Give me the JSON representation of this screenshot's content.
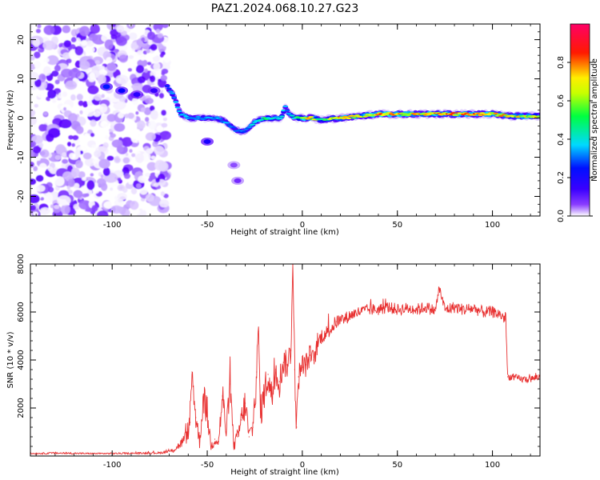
{
  "title": "PAZ1.2024.068.10.27.G23",
  "chart_data": [
    {
      "type": "heatmap",
      "xlabel": "Height of straight line (km)",
      "ylabel": "Frequency (Hz)",
      "xlim": [
        -143,
        125
      ],
      "ylim": [
        -25,
        24
      ],
      "xticks": [
        -100,
        -50,
        0,
        50,
        100
      ],
      "yticks": [
        -20,
        -10,
        0,
        10,
        20
      ],
      "x_minor_step": 10,
      "y_minor_step": 2,
      "colorbar": {
        "label": "Normalized spectral amplitude",
        "range": [
          0.0,
          1.0
        ],
        "ticks": [
          0.0,
          0.2,
          0.4,
          0.6,
          0.8
        ],
        "colormap": [
          "#ffffff",
          "#5b00ff",
          "#0000ff",
          "#00e5ff",
          "#00ff55",
          "#ffff00",
          "#ff0000",
          "#ff0066"
        ]
      },
      "noise_region_x": [
        -143,
        -71
      ],
      "ridge": {
        "x": [
          -71,
          -68,
          -64,
          -60,
          -55,
          -50,
          -45,
          -40,
          -35,
          -32,
          -29,
          -25,
          -20,
          -15,
          -11,
          -9,
          -7,
          -4,
          -1,
          0,
          5,
          10,
          20,
          30,
          40,
          50,
          60,
          70,
          80,
          90,
          100,
          110,
          125
        ],
        "y": [
          8,
          6,
          1,
          0,
          0,
          0,
          0,
          -1,
          -3,
          -3.5,
          -3,
          -1,
          0,
          0,
          0,
          3,
          1,
          0,
          0,
          0,
          0,
          -0.5,
          0,
          0.5,
          1,
          1,
          1,
          1,
          1,
          1,
          1,
          0.5,
          0.5
        ],
        "amplitude": [
          0.35,
          0.4,
          0.45,
          0.45,
          0.4,
          0.4,
          0.4,
          0.4,
          0.35,
          0.35,
          0.35,
          0.5,
          0.6,
          0.5,
          0.5,
          0.4,
          0.4,
          0.55,
          0.7,
          0.85,
          0.8,
          0.6,
          0.85,
          0.75,
          0.9,
          0.85,
          0.8,
          0.9,
          0.9,
          0.9,
          0.85,
          0.8,
          0.75
        ]
      },
      "blobs": [
        {
          "x": -103,
          "y": 8,
          "amp": 0.3
        },
        {
          "x": -95,
          "y": 7,
          "amp": 0.28
        },
        {
          "x": -87,
          "y": 6,
          "amp": 0.22
        },
        {
          "x": -78,
          "y": 7,
          "amp": 0.2
        },
        {
          "x": -50,
          "y": -6,
          "amp": 0.25
        },
        {
          "x": -36,
          "y": -12,
          "amp": 0.1
        },
        {
          "x": -34,
          "y": -16,
          "amp": 0.12
        }
      ]
    },
    {
      "type": "line",
      "xlabel": "Height of straight line (km)",
      "ylabel": "SNR (10 * v/v)",
      "xlim": [
        -143,
        125
      ],
      "ylim": [
        0,
        8000
      ],
      "xticks": [
        -100,
        -50,
        0,
        50,
        100
      ],
      "yticks": [
        2000,
        4000,
        6000,
        8000
      ],
      "x_minor_step": 10,
      "y_minor_step": 400,
      "color": "#e83030",
      "series": [
        {
          "x": [
            -143,
            -130,
            -110,
            -90,
            -75,
            -68,
            -64,
            -61,
            -59,
            -58,
            -56,
            -54,
            -52,
            -50,
            -48,
            -46,
            -44,
            -42,
            -40,
            -38,
            -36,
            -34,
            -32,
            -30,
            -28,
            -26,
            -24,
            -23,
            -22,
            -20,
            -18,
            -16,
            -14,
            -12,
            -10,
            -8,
            -6,
            -5,
            -4,
            -3,
            -2,
            0,
            2,
            4,
            6,
            8,
            10,
            14,
            18,
            22,
            26,
            30,
            35,
            40,
            45,
            50,
            55,
            60,
            65,
            70,
            72,
            75,
            80,
            85,
            90,
            95,
            100,
            104,
            107,
            108,
            110,
            115,
            120,
            125
          ],
          "y": [
            100,
            120,
            100,
            110,
            130,
            220,
            500,
            800,
            1400,
            3500,
            1600,
            600,
            2400,
            1800,
            400,
            700,
            600,
            2500,
            1000,
            3000,
            400,
            800,
            1500,
            2200,
            800,
            1200,
            3500,
            5200,
            1800,
            2600,
            3400,
            2400,
            3600,
            3100,
            3900,
            3800,
            4400,
            8000,
            3600,
            1200,
            3300,
            3700,
            3800,
            4200,
            4000,
            4600,
            5000,
            5200,
            5600,
            5700,
            5900,
            6000,
            6100,
            6100,
            6200,
            6100,
            6150,
            6100,
            6200,
            6050,
            7000,
            6100,
            6200,
            6100,
            6150,
            6000,
            6000,
            5900,
            5700,
            3300,
            3300,
            3200,
            3200,
            3300
          ],
          "noise": [
            30,
            40,
            30,
            35,
            40,
            80,
            200,
            300,
            600,
            400,
            600,
            300,
            600,
            700,
            200,
            300,
            300,
            800,
            400,
            600,
            200,
            400,
            600,
            700,
            400,
            500,
            900,
            500,
            700,
            700,
            800,
            700,
            700,
            700,
            600,
            600,
            600,
            300,
            800,
            700,
            600,
            600,
            500,
            500,
            400,
            400,
            350,
            300,
            300,
            280,
            250,
            250,
            250,
            250,
            250,
            250,
            250,
            250,
            250,
            250,
            200,
            250,
            250,
            250,
            250,
            250,
            250,
            250,
            250,
            150,
            150,
            150,
            150,
            150
          ]
        }
      ]
    }
  ]
}
